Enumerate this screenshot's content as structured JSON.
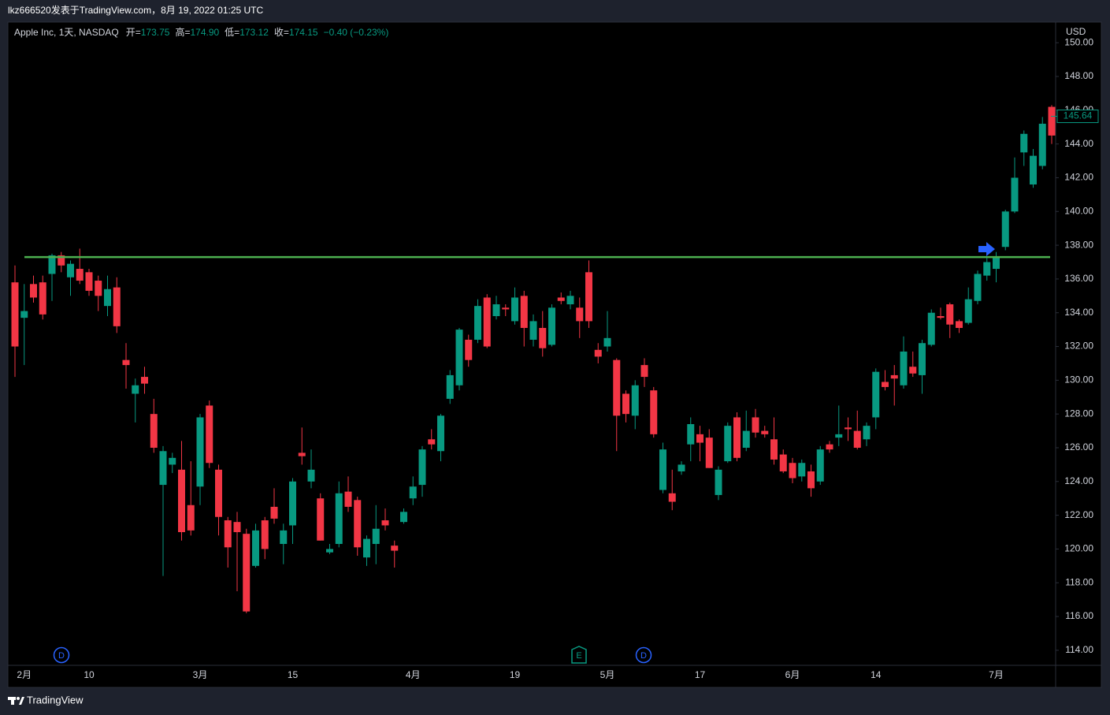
{
  "header": {
    "caption": "lkz666520发表于TradingView.com，8月 19, 2022 01:25 UTC"
  },
  "legend": {
    "symbol": "Apple Inc, 1天, NASDAQ",
    "open_label": "开=",
    "open": "173.75",
    "high_label": "高=",
    "high": "174.90",
    "low_label": "低=",
    "low": "173.12",
    "close_label": "收=",
    "close": "174.15",
    "change": "−0.40 (−0.23%)"
  },
  "footer": {
    "brand": "TradingView"
  },
  "chart_data": {
    "type": "candlestick",
    "currency": "USD",
    "up_color": "#089981",
    "down_color": "#f23645",
    "categories": [
      null,
      "2月",
      null,
      null,
      null,
      null,
      null,
      null,
      "10",
      null,
      null,
      null,
      null,
      null,
      null,
      null,
      null,
      null,
      null,
      null,
      "3月",
      null,
      null,
      null,
      null,
      null,
      null,
      null,
      null,
      null,
      "15",
      null,
      null,
      null,
      null,
      null,
      null,
      null,
      null,
      null,
      null,
      null,
      null,
      "4月",
      null,
      null,
      null,
      null,
      null,
      null,
      null,
      null,
      null,
      null,
      "19",
      null,
      null,
      null,
      null,
      null,
      null,
      null,
      null,
      null,
      "5月",
      null,
      null,
      null,
      null,
      null,
      null,
      null,
      null,
      null,
      "17",
      null,
      null,
      null,
      null,
      null,
      null,
      null,
      null,
      null,
      "6月",
      null,
      null,
      null,
      null,
      null,
      null,
      null,
      null,
      "14",
      null,
      null,
      null,
      null,
      null,
      null,
      null,
      null,
      null,
      null,
      null,
      null,
      "7月",
      null,
      null,
      null,
      null,
      null,
      null
    ],
    "open": [
      135.8,
      133.7,
      135.7,
      135.8,
      136.3,
      137.4,
      136.1,
      136.6,
      136.4,
      135.9,
      134.4,
      135.5,
      131.2,
      129.2,
      130.2,
      128.0,
      123.8,
      125.0,
      124.7,
      122.6,
      123.7,
      128.5,
      124.7,
      121.7,
      121.6,
      120.9,
      119.0,
      121.7,
      122.5,
      120.3,
      121.4,
      125.7,
      124.0,
      123.0,
      119.8,
      120.3,
      123.4,
      122.9,
      119.5,
      120.3,
      121.7,
      120.2,
      121.6,
      123.0,
      123.8,
      126.5,
      125.8,
      128.9,
      129.7,
      132.4,
      132.4,
      134.9,
      133.8,
      134.3,
      133.5,
      135.0,
      132.4,
      133.1,
      132.1,
      134.9,
      134.5,
      134.3,
      136.4,
      131.8,
      132.0,
      131.2,
      129.2,
      127.9,
      130.9,
      129.4,
      123.5,
      123.3,
      124.6,
      126.2,
      126.8,
      126.6,
      123.2,
      125.2,
      127.8,
      126.0,
      127.8,
      127.0,
      126.5,
      125.6,
      125.1,
      124.3,
      124.6,
      124.0,
      126.2,
      126.6,
      127.2,
      127.0,
      126.5,
      127.8,
      129.9,
      130.3,
      129.7,
      130.8,
      130.3,
      132.1,
      133.8,
      134.5,
      133.5,
      133.4,
      134.7,
      136.2,
      136.6,
      137.9,
      140.0,
      143.5,
      141.6,
      142.7,
      146.2
    ],
    "high": [
      136.8,
      135.7,
      136.2,
      136.2,
      137.5,
      137.6,
      137.1,
      137.8,
      136.6,
      136.2,
      136.2,
      136.1,
      132.2,
      130.1,
      130.8,
      128.9,
      126.1,
      125.7,
      126.4,
      125.2,
      128.0,
      128.8,
      125.0,
      121.9,
      122.2,
      121.2,
      121.5,
      121.9,
      123.6,
      121.5,
      124.2,
      127.2,
      125.9,
      123.3,
      120.3,
      124.0,
      124.3,
      123.1,
      120.8,
      122.6,
      122.4,
      120.5,
      122.4,
      124.3,
      126.1,
      127.1,
      128.0,
      130.6,
      133.1,
      132.7,
      134.8,
      135.1,
      135.0,
      134.5,
      135.5,
      135.3,
      133.9,
      134.1,
      134.5,
      135.2,
      135.3,
      134.9,
      137.1,
      132.2,
      134.1,
      131.3,
      129.4,
      130.0,
      131.3,
      129.6,
      126.3,
      124.7,
      125.2,
      127.8,
      127.3,
      127.1,
      124.9,
      127.5,
      128.1,
      128.2,
      128.3,
      127.3,
      127.8,
      125.9,
      125.4,
      125.3,
      125.0,
      126.1,
      126.4,
      128.5,
      127.8,
      128.2,
      127.5,
      130.7,
      130.6,
      130.9,
      132.6,
      131.7,
      132.4,
      134.2,
      134.3,
      134.6,
      133.6,
      135.5,
      136.5,
      137.3,
      137.6,
      140.1,
      143.2,
      144.8,
      143.7,
      145.6,
      146.3
    ],
    "low": [
      130.2,
      130.9,
      134.6,
      133.6,
      134.7,
      136.4,
      135.0,
      135.7,
      135.0,
      134.1,
      133.8,
      132.8,
      129.5,
      127.5,
      129.2,
      125.7,
      118.4,
      124.5,
      120.5,
      120.8,
      122.6,
      124.8,
      120.8,
      118.9,
      117.5,
      116.2,
      118.9,
      119.4,
      121.5,
      119.1,
      120.3,
      125.0,
      123.6,
      120.5,
      119.7,
      120.1,
      122.2,
      119.6,
      119.0,
      119.1,
      121.1,
      118.9,
      121.5,
      122.6,
      123.1,
      125.9,
      125.2,
      128.6,
      129.4,
      130.8,
      132.2,
      131.9,
      133.6,
      133.8,
      133.3,
      132.0,
      132.0,
      131.4,
      132.0,
      134.5,
      134.2,
      132.5,
      133.1,
      131.0,
      131.7,
      125.8,
      127.5,
      127.1,
      129.6,
      126.6,
      123.3,
      122.3,
      124.4,
      125.2,
      125.2,
      124.8,
      122.9,
      125.1,
      125.2,
      125.8,
      126.6,
      126.6,
      125.0,
      124.5,
      123.9,
      124.0,
      123.1,
      123.8,
      125.7,
      126.1,
      126.4,
      125.9,
      126.1,
      127.1,
      129.4,
      128.5,
      129.5,
      130.2,
      129.2,
      132.0,
      133.6,
      132.5,
      132.8,
      133.3,
      134.5,
      135.9,
      135.8,
      137.7,
      139.9,
      142.7,
      141.4,
      142.5,
      144.0
    ],
    "close": [
      132.0,
      134.1,
      134.9,
      133.9,
      137.4,
      136.8,
      136.9,
      135.9,
      135.3,
      135.0,
      135.4,
      133.2,
      130.9,
      129.7,
      129.8,
      126.0,
      125.8,
      125.4,
      121.0,
      121.1,
      127.8,
      125.1,
      121.9,
      120.1,
      121.0,
      116.3,
      121.1,
      120.0,
      121.8,
      121.1,
      124.0,
      125.5,
      124.7,
      120.5,
      120.0,
      123.3,
      122.5,
      120.1,
      120.6,
      121.2,
      121.4,
      119.9,
      122.2,
      123.7,
      125.9,
      126.2,
      127.9,
      130.3,
      133.0,
      131.2,
      134.4,
      132.0,
      134.5,
      134.2,
      134.9,
      133.1,
      133.5,
      131.9,
      134.3,
      134.7,
      135.0,
      133.5,
      133.5,
      131.4,
      132.5,
      127.9,
      128.0,
      129.7,
      130.2,
      126.8,
      125.9,
      122.8,
      125.0,
      127.4,
      126.3,
      124.8,
      124.7,
      127.3,
      125.4,
      127.0,
      126.9,
      126.8,
      125.3,
      124.6,
      124.2,
      125.1,
      123.6,
      125.9,
      125.9,
      126.8,
      127.1,
      126.0,
      127.3,
      130.5,
      129.6,
      130.1,
      131.7,
      130.4,
      132.2,
      134.0,
      133.7,
      133.3,
      133.1,
      134.8,
      136.3,
      137.0,
      137.3,
      140.0,
      142.0,
      144.6,
      143.3,
      145.2,
      144.5
    ],
    "ylim": [
      113.06,
      151.13
    ],
    "yticks": [
      {
        "value": 114,
        "label": "114.00"
      },
      {
        "value": 116,
        "label": "116.00"
      },
      {
        "value": 118,
        "label": "118.00"
      },
      {
        "value": 120,
        "label": "120.00"
      },
      {
        "value": 122,
        "label": "122.00"
      },
      {
        "value": 124,
        "label": "124.00"
      },
      {
        "value": 126,
        "label": "126.00"
      },
      {
        "value": 128,
        "label": "128.00"
      },
      {
        "value": 130,
        "label": "130.00"
      },
      {
        "value": 132,
        "label": "132.00"
      },
      {
        "value": 134,
        "label": "134.00"
      },
      {
        "value": 136,
        "label": "136.00"
      },
      {
        "value": 138,
        "label": "138.00"
      },
      {
        "value": 140,
        "label": "140.00"
      },
      {
        "value": 142,
        "label": "142.00"
      },
      {
        "value": 144,
        "label": "144.00"
      },
      {
        "value": 146,
        "label": "146.00"
      },
      {
        "value": 148,
        "label": "148.00"
      },
      {
        "value": 150,
        "label": "150.00"
      }
    ],
    "last_price": 145.64,
    "horizontal_line": {
      "value": 137.3,
      "color": "#4caf50"
    },
    "events": [
      {
        "label": "D"
      },
      {
        "label": "E"
      },
      {
        "label": "D"
      }
    ]
  }
}
